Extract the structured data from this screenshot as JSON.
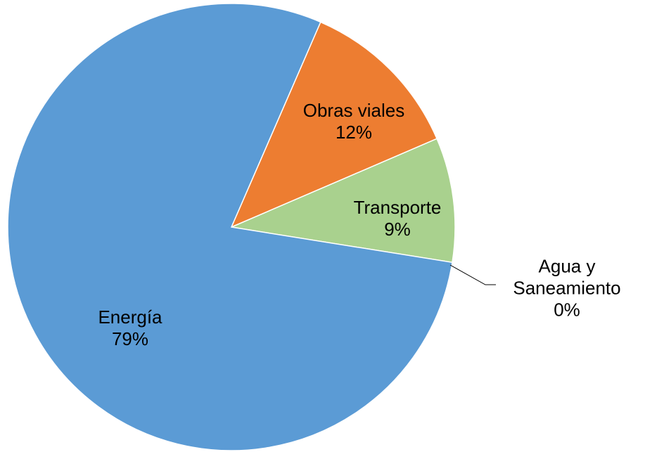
{
  "chart_data": {
    "type": "pie",
    "categories": [
      "Energía",
      "Obras viales",
      "Transporte",
      "Agua y Saneamiento"
    ],
    "values": [
      79,
      12,
      9,
      0
    ],
    "value_labels": [
      "79%",
      "12%",
      "9%",
      "0%"
    ],
    "colors": [
      "#5b9bd5",
      "#ed7d31",
      "#a9d18e",
      "#ffc000"
    ]
  }
}
